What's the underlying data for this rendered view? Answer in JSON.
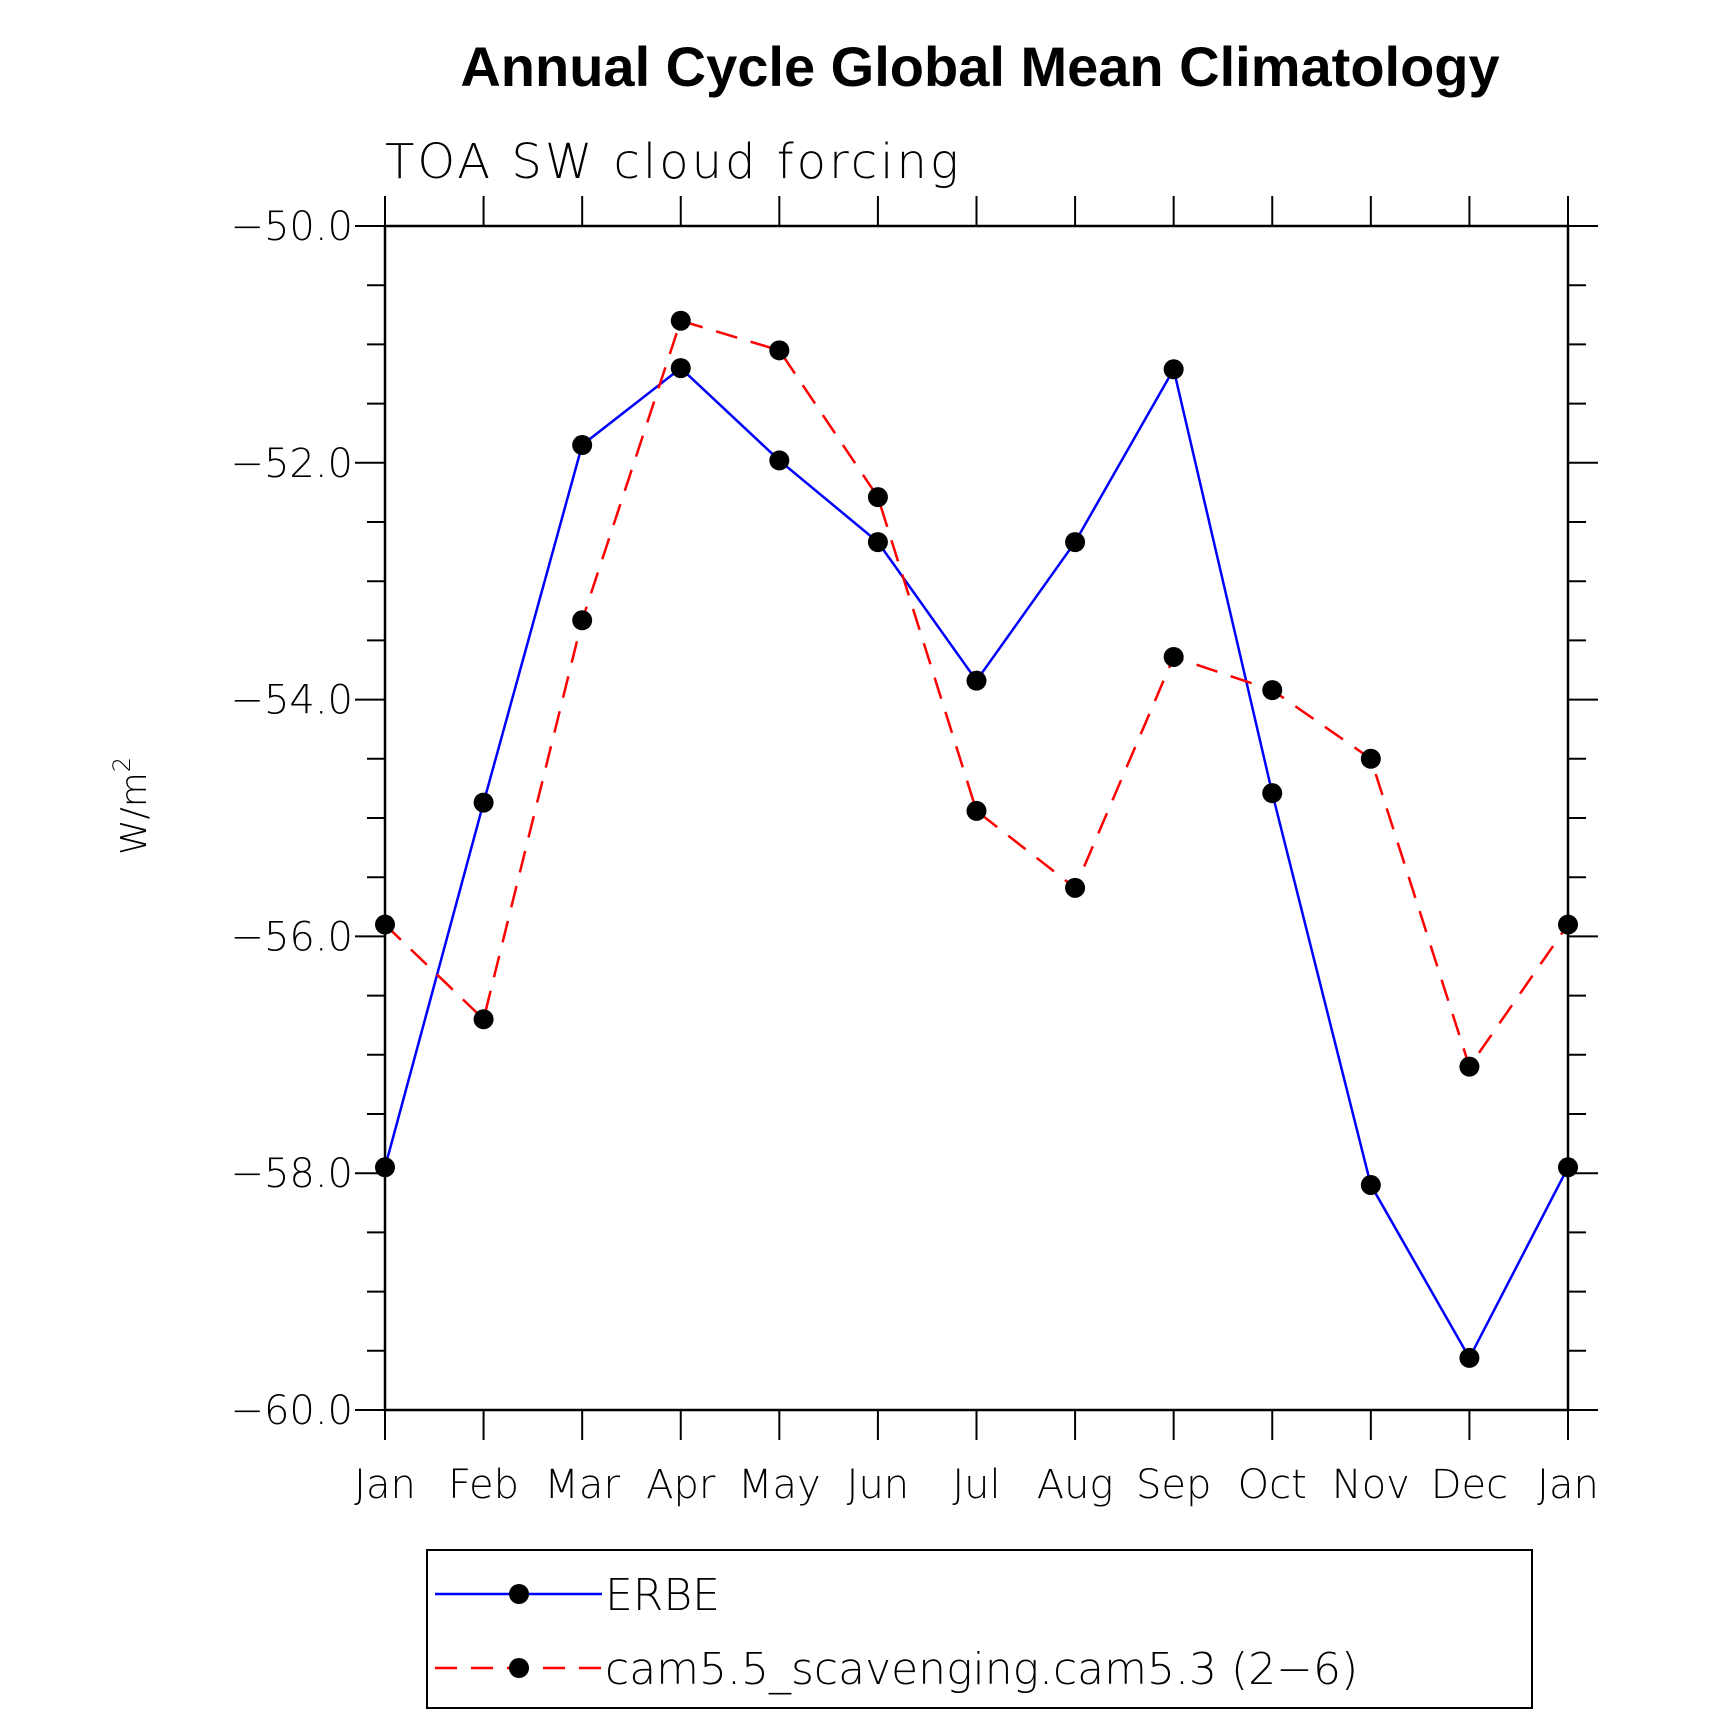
{
  "chart_data": {
    "type": "line",
    "title": "Annual Cycle Global Mean Climatology",
    "subtitle": "TOA SW cloud forcing",
    "ylabel": "W/m",
    "ylabel_superscript": "2",
    "ylim": [
      -60.0,
      -50.0
    ],
    "yticks": [
      -50.0,
      -52.0,
      -54.0,
      -56.0,
      -58.0,
      -60.0
    ],
    "ytick_labels": [
      "−50.0",
      "−52.0",
      "−54.0",
      "−56.0",
      "−58.0",
      "−60.0"
    ],
    "categories": [
      "Jan",
      "Feb",
      "Mar",
      "Apr",
      "May",
      "Jun",
      "Jul",
      "Aug",
      "Sep",
      "Oct",
      "Nov",
      "Dec",
      "Jan"
    ],
    "series": [
      {
        "name": "ERBE",
        "color": "#0000ff",
        "dash": "solid",
        "values": [
          -57.95,
          -54.87,
          -51.85,
          -51.2,
          -51.98,
          -52.67,
          -53.84,
          -52.67,
          -51.21,
          -54.79,
          -58.1,
          -59.56,
          -57.95
        ]
      },
      {
        "name": "cam5.5_scavenging.cam5.3 (2−6)",
        "color": "#ff0000",
        "dash": "dashed",
        "values": [
          -55.9,
          -56.7,
          -53.33,
          -50.8,
          -51.05,
          -52.29,
          -54.94,
          -55.59,
          -53.64,
          -53.92,
          -54.5,
          -57.1,
          -55.9
        ]
      }
    ],
    "marker_color": "#000000",
    "legend_position": "bottom-center"
  }
}
